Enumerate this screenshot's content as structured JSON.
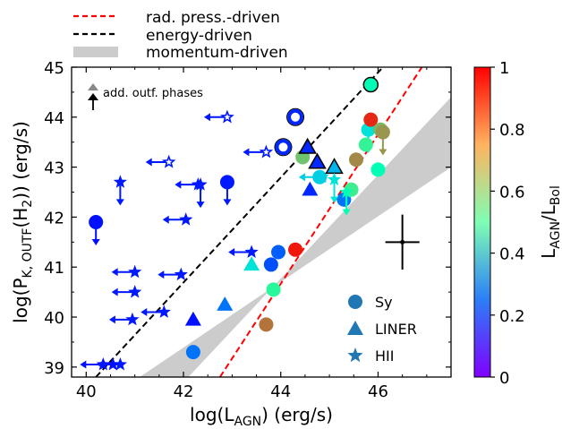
{
  "chart_data": {
    "type": "scatter",
    "xlabel": "log(L",
    "xlabel_sub": "AGN",
    "xlabel_tail": ") (erg/s)",
    "ylabel_pre": "log(P",
    "ylabel_sub1": "K, OUTF",
    "ylabel_mid": "(H",
    "ylabel_sub2": "2",
    "ylabel_tail": ")) (erg/s)",
    "xlim": [
      39.7,
      47.5
    ],
    "ylim": [
      38.8,
      45.0
    ],
    "x_ticks": [
      40,
      42,
      44,
      46
    ],
    "y_ticks": [
      39,
      40,
      41,
      42,
      43,
      44,
      45
    ],
    "colorbar": {
      "label_pre": "L",
      "label_sub1": "AGN",
      "label_mid": "/L",
      "label_sub2": "Bol",
      "range": [
        0,
        1
      ],
      "ticks": [
        "0",
        "0.2",
        "0.4",
        "0.6",
        "0.8",
        "1"
      ],
      "colormap": "rainbow"
    },
    "top_legend": [
      {
        "label": "rad. press.-driven",
        "style": "dashed",
        "color": "#ff0000"
      },
      {
        "label": "energy-driven",
        "style": "dashed",
        "color": "#000000"
      },
      {
        "label": "momentum-driven",
        "style": "band",
        "color": "#cccccc"
      }
    ],
    "marker_legend": [
      {
        "label": "Sy",
        "marker": "circle"
      },
      {
        "label": "LINER",
        "marker": "triangle"
      },
      {
        "label": "HII",
        "marker": "star"
      }
    ],
    "annotation": "add. outf. phases",
    "lines": {
      "energy": {
        "x": [
          40.2,
          46.1
        ],
        "y": [
          38.8,
          45.0
        ]
      },
      "radiation": {
        "x": [
          42.75,
          46.9
        ],
        "y": [
          38.8,
          45.0
        ]
      },
      "momentum_band": [
        [
          41.1,
          38.8
        ],
        [
          42.1,
          38.8
        ],
        [
          47.5,
          44.4
        ],
        [
          47.5,
          43.0
        ]
      ]
    },
    "error_cross": {
      "x": 46.5,
      "y": 41.5,
      "dx": 0.35,
      "dy": 0.55
    },
    "points": [
      {
        "t": "star",
        "x": 40.35,
        "y": 39.05,
        "c": 0.02,
        "a": "left"
      },
      {
        "t": "star",
        "x": 40.7,
        "y": 39.05,
        "c": 0.03,
        "a": "left"
      },
      {
        "t": "star",
        "x": 40.55,
        "y": 39.05,
        "c": 0.02
      },
      {
        "t": "star",
        "x": 40.7,
        "y": 42.7,
        "c": 0.03,
        "a": "down"
      },
      {
        "t": "star",
        "x": 41.0,
        "y": 40.9,
        "c": 0.03,
        "a": "left"
      },
      {
        "t": "star",
        "x": 41.0,
        "y": 40.5,
        "c": 0.03,
        "a": "left"
      },
      {
        "t": "star",
        "x": 40.95,
        "y": 39.95,
        "c": 0.03,
        "a": "left"
      },
      {
        "t": "star",
        "x": 41.6,
        "y": 40.1,
        "c": 0.03,
        "a": "left"
      },
      {
        "t": "star",
        "x": 41.95,
        "y": 40.85,
        "c": 0.03,
        "a": "left"
      },
      {
        "t": "star",
        "x": 42.05,
        "y": 41.95,
        "c": 0.03,
        "a": "left"
      },
      {
        "t": "star",
        "x": 42.35,
        "y": 42.65,
        "c": 0.03,
        "a": "down"
      },
      {
        "t": "star",
        "x": 42.3,
        "y": 42.65,
        "c": 0.03,
        "a": "left"
      },
      {
        "t": "star",
        "x": 43.4,
        "y": 41.3,
        "c": 0.03,
        "a": "left"
      },
      {
        "t": "hstar",
        "x": 41.7,
        "y": 43.1,
        "c": 0.03,
        "a": "left"
      },
      {
        "t": "hstar",
        "x": 42.9,
        "y": 44.0,
        "c": 0.03,
        "a": "left"
      },
      {
        "t": "hstar",
        "x": 43.7,
        "y": 43.3,
        "c": 0.03,
        "a": "left"
      },
      {
        "t": "circle",
        "x": 40.2,
        "y": 41.9,
        "c": 0.02,
        "a": "down"
      },
      {
        "t": "circle",
        "x": 42.9,
        "y": 42.7,
        "c": 0.03,
        "a": "down"
      },
      {
        "t": "ring",
        "x": 44.3,
        "y": 44.0,
        "c": 0.05
      },
      {
        "t": "ring",
        "x": 44.05,
        "y": 43.4,
        "c": 0.05
      },
      {
        "t": "circle",
        "x": 45.85,
        "y": 44.65,
        "c": 0.5,
        "e": true
      },
      {
        "t": "circle",
        "x": 42.2,
        "y": 39.3,
        "c": 0.15
      },
      {
        "t": "circle",
        "x": 43.7,
        "y": 39.85,
        "c": 0.85
      },
      {
        "t": "circle",
        "x": 43.95,
        "y": 41.3,
        "c": 0.12
      },
      {
        "t": "circle",
        "x": 43.8,
        "y": 41.05,
        "c": 0.1
      },
      {
        "t": "circle",
        "x": 43.85,
        "y": 40.55,
        "c": 0.58
      },
      {
        "t": "circle",
        "x": 44.3,
        "y": 41.35,
        "c": 0.97
      },
      {
        "t": "circle",
        "x": 44.45,
        "y": 43.2,
        "c": 0.72
      },
      {
        "t": "circle",
        "x": 44.8,
        "y": 42.8,
        "c": 0.3
      },
      {
        "t": "circle",
        "x": 45.3,
        "y": 42.35,
        "c": 0.15
      },
      {
        "t": "circle",
        "x": 45.45,
        "y": 42.55,
        "c": 0.62
      },
      {
        "t": "circle",
        "x": 45.55,
        "y": 43.15,
        "c": 0.82
      },
      {
        "t": "circle",
        "x": 45.8,
        "y": 43.75,
        "c": 0.35,
        "a": "down"
      },
      {
        "t": "circle",
        "x": 45.75,
        "y": 43.45,
        "c": 0.6
      },
      {
        "t": "circle",
        "x": 45.85,
        "y": 43.95,
        "c": 0.95
      },
      {
        "t": "circle",
        "x": 46.05,
        "y": 43.75,
        "c": 0.75
      },
      {
        "t": "circle",
        "x": 46.1,
        "y": 43.7,
        "c": 0.8,
        "a": "down"
      },
      {
        "t": "circle",
        "x": 46.0,
        "y": 42.95,
        "c": 0.5
      },
      {
        "t": "tri",
        "x": 42.2,
        "y": 39.95,
        "c": 0.02
      },
      {
        "t": "tri",
        "x": 42.85,
        "y": 40.25,
        "c": 0.15
      },
      {
        "t": "tri",
        "x": 43.4,
        "y": 41.05,
        "c": 0.35
      },
      {
        "t": "tri",
        "x": 44.6,
        "y": 42.55,
        "c": 0.05
      },
      {
        "t": "tri",
        "x": 44.55,
        "y": 43.4,
        "c": 0.05,
        "e": true
      },
      {
        "t": "tri",
        "x": 44.75,
        "y": 43.1,
        "c": 0.05,
        "e": true
      },
      {
        "t": "tri",
        "x": 45.1,
        "y": 43.0,
        "c": 0.25,
        "e": true
      },
      {
        "t": "star",
        "x": 44.85,
        "y": 42.8,
        "c": 0.3,
        "a": "left"
      },
      {
        "t": "star",
        "x": 45.1,
        "y": 42.75,
        "c": 0.35,
        "a": "down"
      },
      {
        "t": "star",
        "x": 45.35,
        "y": 42.5,
        "c": 0.5,
        "a": "down"
      }
    ]
  }
}
